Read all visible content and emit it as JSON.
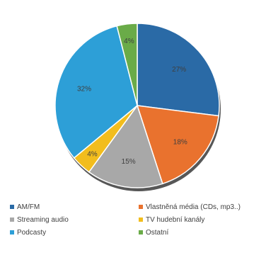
{
  "chart_data": {
    "type": "pie",
    "title": "",
    "slices": [
      {
        "label": "AM/FM",
        "value": 27,
        "display": "27%",
        "color": "#2a6aa6"
      },
      {
        "label": "Vlastněná média (CDs, mp3..)",
        "value": 18,
        "display": "18%",
        "color": "#e9722e"
      },
      {
        "label": "Streaming audio",
        "value": 15,
        "display": "15%",
        "color": "#a8a8a8"
      },
      {
        "label": "TV hudební kanály",
        "value": 4,
        "display": "4%",
        "color": "#f2bd1d"
      },
      {
        "label": "Podcasty",
        "value": 32,
        "display": "32%",
        "color": "#2d9fd7"
      },
      {
        "label": "Ostatní",
        "value": 4,
        "display": "4%",
        "color": "#6aab48"
      }
    ],
    "legend": {
      "placement": "bottom",
      "columns": 2,
      "order": [
        "AM/FM",
        "Vlastněná média (CDs, mp3..)",
        "Streaming audio",
        "TV hudební kanály",
        "Podcasty",
        "Ostatní"
      ]
    }
  }
}
